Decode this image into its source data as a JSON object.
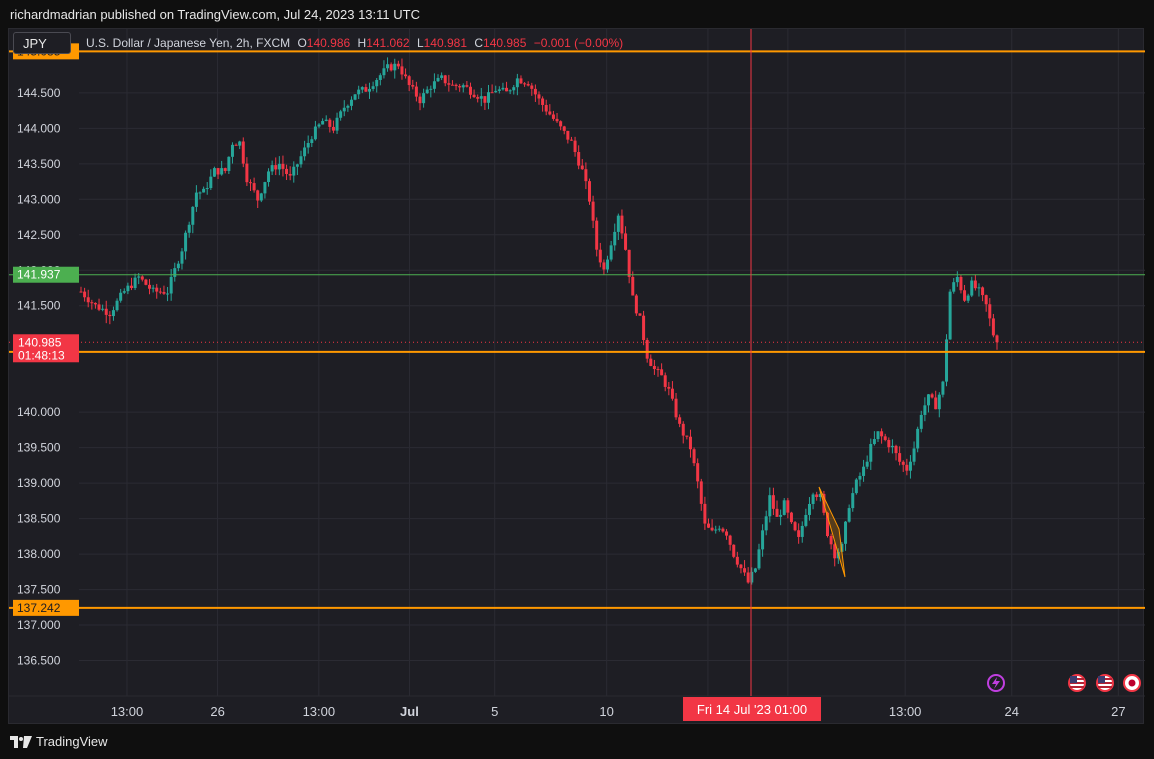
{
  "header": {
    "publisher": "richardmadrian published on TradingView.com, Jul 24, 2023 13:11 UTC"
  },
  "symbol": {
    "ticker": "JPY"
  },
  "legend": {
    "description": "U.S. Dollar / Japanese Yen, 2h, FXCM",
    "open_label": "O",
    "open": "140.986",
    "high_label": "H",
    "high": "141.062",
    "low_label": "L",
    "low": "140.981",
    "close_label": "C",
    "close": "140.985",
    "change": "−0.001 (−0.00%)"
  },
  "footer": {
    "brand": "TradingView"
  },
  "colors": {
    "up": "#26a69a",
    "down": "#f23645",
    "level": "#ff9800",
    "green_line": "#4caf50",
    "crosshair": "#f23645",
    "background": "#1e1e24",
    "grid": "#2b2b33",
    "text": "#d1d4dc"
  },
  "icons": [
    "lightning-icon",
    "us-flag-icon",
    "us-flag-icon",
    "japan-flag-icon",
    "tradingview-logo-icon"
  ],
  "chart_data": {
    "type": "candlestick",
    "y_ticks": [
      "136.500",
      "137.000",
      "137.500",
      "138.000",
      "138.500",
      "139.000",
      "139.500",
      "140.000",
      "141.500",
      "142.000",
      "142.500",
      "143.000",
      "143.500",
      "144.000",
      "144.500"
    ],
    "x_ticks": [
      "13:00",
      "26",
      "13:00",
      "Jul",
      "5",
      "10",
      "13:00",
      "24",
      "27"
    ],
    "ylim": [
      136.0,
      145.4
    ],
    "grid": true,
    "horizontal_levels": [
      {
        "price": 145.085,
        "label": "145.085",
        "color": "#ff9800"
      },
      {
        "price": 141.937,
        "label": "141.937",
        "color": "#4caf50"
      },
      {
        "price": 140.849,
        "label": "140.849",
        "color": "#ff9800"
      },
      {
        "price": 137.242,
        "label": "137.242",
        "color": "#ff9800"
      }
    ],
    "last_price": {
      "price": 140.985,
      "label": "140.985",
      "countdown": "01:48:13",
      "color": "#f23645"
    },
    "crosshair_label": "Fri 14 Jul '23   01:00",
    "price_path": [
      [
        0,
        141.7
      ],
      [
        4,
        141.5
      ],
      [
        8,
        141.4
      ],
      [
        12,
        141.7
      ],
      [
        16,
        141.9
      ],
      [
        20,
        141.7
      ],
      [
        24,
        141.7
      ],
      [
        28,
        142.3
      ],
      [
        30,
        142.7
      ],
      [
        32,
        143.1
      ],
      [
        34,
        143.1
      ],
      [
        37,
        143.4
      ],
      [
        40,
        143.4
      ],
      [
        42,
        143.8
      ],
      [
        44,
        143.8
      ],
      [
        46,
        143.3
      ],
      [
        49,
        143.0
      ],
      [
        52,
        143.4
      ],
      [
        55,
        143.5
      ],
      [
        58,
        143.3
      ],
      [
        61,
        143.6
      ],
      [
        64,
        143.9
      ],
      [
        67,
        144.1
      ],
      [
        70,
        144.0
      ],
      [
        73,
        144.3
      ],
      [
        76,
        144.5
      ],
      [
        79,
        144.55
      ],
      [
        82,
        144.7
      ],
      [
        85,
        144.85
      ],
      [
        88,
        144.9
      ],
      [
        91,
        144.6
      ],
      [
        94,
        144.4
      ],
      [
        97,
        144.6
      ],
      [
        100,
        144.7
      ],
      [
        103,
        144.6
      ],
      [
        106,
        144.6
      ],
      [
        109,
        144.5
      ],
      [
        112,
        144.4
      ],
      [
        115,
        144.55
      ],
      [
        118,
        144.5
      ],
      [
        121,
        144.7
      ],
      [
        124,
        144.65
      ],
      [
        127,
        144.4
      ],
      [
        130,
        144.2
      ],
      [
        133,
        144.0
      ],
      [
        136,
        143.8
      ],
      [
        139,
        143.4
      ],
      [
        141,
        143.0
      ],
      [
        143,
        142.3
      ],
      [
        145,
        142.0
      ],
      [
        147,
        142.4
      ],
      [
        149,
        142.8
      ],
      [
        151,
        142.3
      ],
      [
        153,
        141.6
      ],
      [
        155,
        141.3
      ],
      [
        157,
        140.8
      ],
      [
        159,
        140.6
      ],
      [
        161,
        140.5
      ],
      [
        163,
        140.3
      ],
      [
        166,
        139.8
      ],
      [
        169,
        139.5
      ],
      [
        171,
        139.0
      ],
      [
        173,
        138.4
      ],
      [
        175,
        138.3
      ],
      [
        177,
        138.4
      ],
      [
        179,
        138.3
      ],
      [
        181,
        138.0
      ],
      [
        183,
        137.8
      ],
      [
        185,
        137.6
      ],
      [
        187,
        137.8
      ],
      [
        189,
        138.3
      ],
      [
        191,
        138.8
      ],
      [
        193,
        138.5
      ],
      [
        195,
        138.7
      ],
      [
        197,
        138.4
      ],
      [
        199,
        138.2
      ],
      [
        201,
        138.6
      ],
      [
        203,
        138.9
      ],
      [
        205,
        138.8
      ],
      [
        207,
        138.3
      ],
      [
        209,
        138.0
      ],
      [
        211,
        138.1
      ],
      [
        213,
        138.7
      ],
      [
        215,
        139.0
      ],
      [
        217,
        139.2
      ],
      [
        219,
        139.5
      ],
      [
        221,
        139.7
      ],
      [
        223,
        139.6
      ],
      [
        225,
        139.5
      ],
      [
        227,
        139.3
      ],
      [
        229,
        139.2
      ],
      [
        231,
        139.5
      ],
      [
        233,
        140.0
      ],
      [
        235,
        140.2
      ],
      [
        237,
        140.1
      ],
      [
        239,
        140.4
      ],
      [
        241,
        141.7
      ],
      [
        243,
        141.9
      ],
      [
        245,
        141.6
      ],
      [
        247,
        141.8
      ],
      [
        249,
        141.7
      ],
      [
        251,
        141.5
      ],
      [
        253,
        141.1
      ],
      [
        254,
        140.985
      ]
    ]
  }
}
